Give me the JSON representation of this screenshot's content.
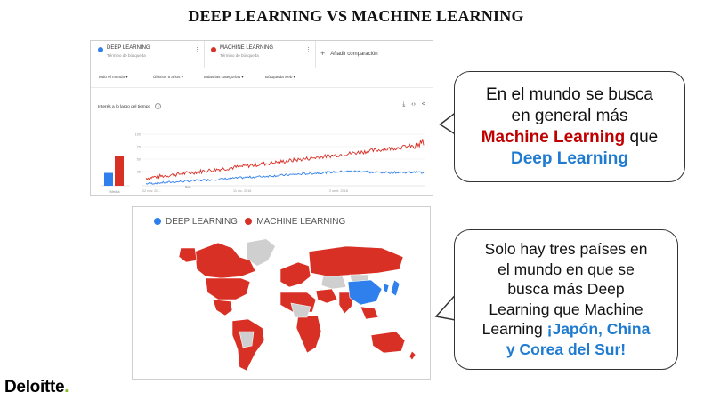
{
  "title": "DEEP LEARNING VS MACHINE LEARNING",
  "colors": {
    "deep": "#2f80ed",
    "machine": "#d93025",
    "map_other": "#cfcfcf"
  },
  "trends": {
    "terms": [
      {
        "name": "DEEP LEARNING",
        "sub": "Término de búsqueda",
        "color": "#2f80ed"
      },
      {
        "name": "MACHINE LEARNING",
        "sub": "Término de búsqueda",
        "color": "#d93025"
      }
    ],
    "add_comparison": "Añadir comparación",
    "filters": [
      "Todo el mundo ▾",
      "Últimos 5 años ▾",
      "Todas las categorías ▾",
      "Búsqueda web ▾"
    ],
    "section_title": "Interés a lo largo del tiempo",
    "help_icon": "?",
    "tools_icons": [
      "download-icon",
      "embed-icon",
      "share-icon"
    ],
    "tools_glyphs": [
      "⤓",
      "‹›",
      "<"
    ],
    "x_ticks": [
      "22 nov. 20...",
      "11 dic. 2016",
      "2 sept. 2018"
    ],
    "y_ticks": [
      "100",
      "75",
      "50",
      "25"
    ],
    "avg_label": "Media",
    "note_label": "Nota",
    "average": {
      "deep": 25,
      "machine": 58
    },
    "weeks": 260
  },
  "callout1": {
    "line1": "En el mundo se busca",
    "line2": "en general más",
    "highlight_red": "Machine Learning",
    "line3_tail": " que",
    "highlight_blue": "Deep Learning"
  },
  "map": {
    "legend": [
      {
        "label": "DEEP LEARNING",
        "color": "#2f80ed"
      },
      {
        "label": "MACHINE LEARNING",
        "color": "#d93025"
      }
    ]
  },
  "callout2": {
    "lines": [
      "Solo hay tres países en",
      "el mundo en que se",
      "busca más Deep",
      "Learning que Machine"
    ],
    "tail_plain": "Learning ",
    "highlight_blue_1": "¡Japón, China",
    "highlight_blue_2": "y Corea del Sur!"
  },
  "logo": {
    "text": "Deloitte",
    "dot": "."
  }
}
